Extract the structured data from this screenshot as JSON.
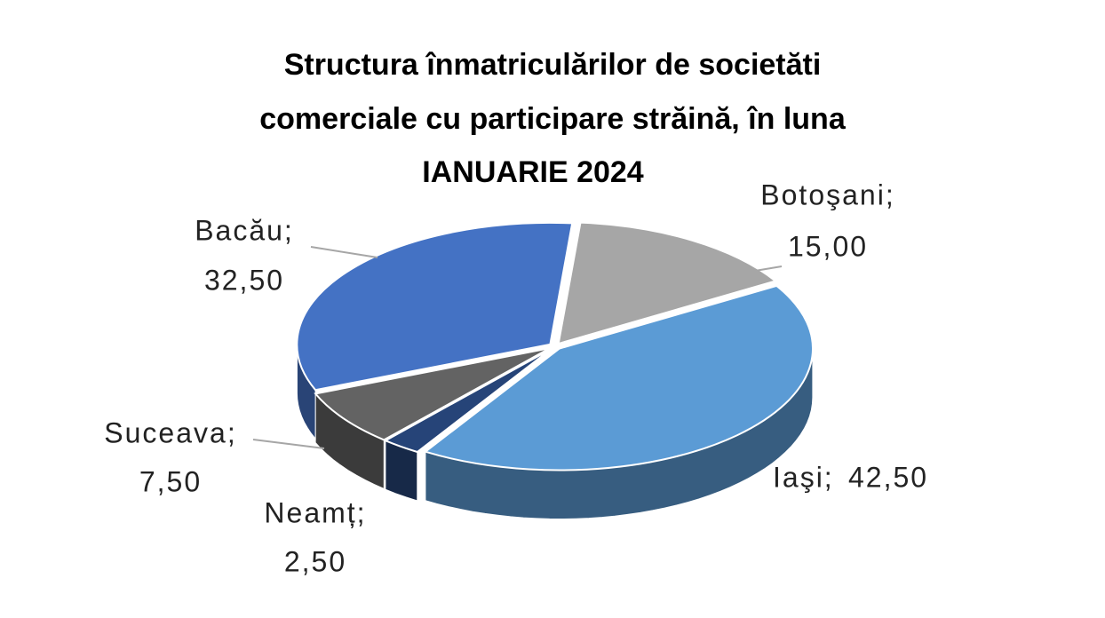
{
  "chart_data": {
    "type": "pie3d",
    "title": [
      "Structura înmatriculărilor  de societăti",
      "comerciale cu participare străină,  în luna",
      "IANUARIE  2024"
    ],
    "categories": [
      "Botoşani;",
      "Iaşi;",
      "Neamț;",
      "Suceava;",
      "Bacău;"
    ],
    "values": [
      15.0,
      42.5,
      2.5,
      7.5,
      32.5
    ],
    "value_labels": [
      "15,00",
      "42,50",
      "2,50",
      "7,50",
      "32,50"
    ],
    "colors": [
      "#a6a6a6",
      "#5b9bd5",
      "#264478",
      "#636363",
      "#4472c4"
    ]
  }
}
